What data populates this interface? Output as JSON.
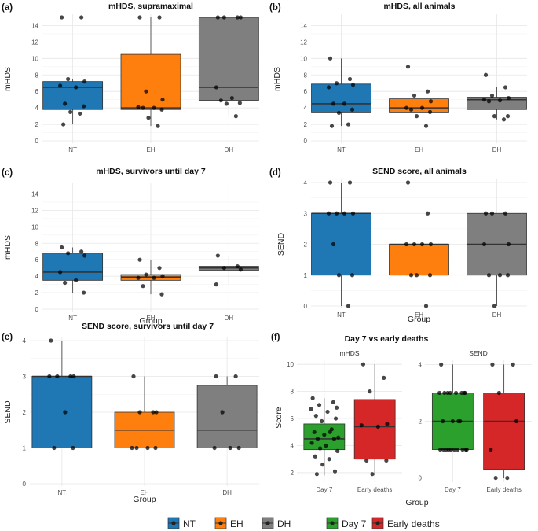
{
  "colors": {
    "NT": "#1f77b4",
    "EH": "#ff7f0e",
    "DH": "#7f7f7f",
    "Day 7": "#2ca02c",
    "Early deaths": "#d62728"
  },
  "chart_data": [
    {
      "type": "box",
      "panel": "(a)",
      "title": "mHDS, supramaximal",
      "xlabel": "",
      "ylabel": "mHDS",
      "ylim": [
        0,
        15
      ],
      "yticks": [
        0,
        2,
        4,
        6,
        8,
        10,
        12,
        14
      ],
      "minor": true,
      "categories": [
        "NT",
        "EH",
        "DH"
      ],
      "boxes": [
        {
          "group": "NT",
          "q1": 3.8,
          "median": 6.5,
          "q3": 7.2,
          "lo": 2,
          "hi": 7.5
        },
        {
          "group": "EH",
          "q1": 3.8,
          "median": 4,
          "q3": 10.5,
          "lo": 1.8,
          "hi": 15
        },
        {
          "group": "DH",
          "q1": 4.9,
          "median": 6.5,
          "q3": 15,
          "lo": 3,
          "hi": 15
        }
      ],
      "points": [
        {
          "group": "NT",
          "values": [
            15,
            15,
            7.5,
            7.2,
            6.7,
            6.5,
            4.5,
            4.2,
            3.5,
            3.3,
            2
          ]
        },
        {
          "group": "EH",
          "values": [
            15,
            15,
            6,
            5,
            4.1,
            4,
            4,
            3.8,
            2.8,
            1.8
          ]
        },
        {
          "group": "DH",
          "values": [
            15,
            15,
            15,
            15,
            6.5,
            5.2,
            4.9,
            4.6,
            4.5,
            3
          ]
        }
      ]
    },
    {
      "type": "box",
      "panel": "(b)",
      "title": "mHDS, all animals",
      "xlabel": "",
      "ylabel": "mHDS",
      "ylim": [
        0,
        15
      ],
      "yticks": [
        0,
        2,
        4,
        6,
        8,
        10,
        12,
        14
      ],
      "minor": true,
      "categories": [
        "NT",
        "EH",
        "DH"
      ],
      "boxes": [
        {
          "group": "NT",
          "q1": 3.4,
          "median": 4.5,
          "q3": 6.9,
          "lo": 1.8,
          "hi": 10
        },
        {
          "group": "EH",
          "q1": 3.4,
          "median": 4,
          "q3": 5.1,
          "lo": 1.8,
          "hi": 5.8
        },
        {
          "group": "DH",
          "q1": 3.8,
          "median": 5,
          "q3": 5.3,
          "lo": 2.6,
          "hi": 6.5
        }
      ],
      "points": [
        {
          "group": "NT",
          "values": [
            10,
            7.5,
            7,
            6.8,
            6.5,
            4.5,
            4.5,
            3.8,
            3.4,
            2,
            1.8
          ]
        },
        {
          "group": "EH",
          "values": [
            9,
            6,
            5.5,
            4.8,
            4,
            4,
            3.8,
            3.5,
            3,
            1.8
          ]
        },
        {
          "group": "DH",
          "values": [
            8,
            6.5,
            5.5,
            5.2,
            5,
            4.9,
            4.8,
            3,
            3,
            2.6
          ]
        }
      ]
    },
    {
      "type": "box",
      "panel": "(c)",
      "title": "mHDS, survivors until day 7",
      "xlabel": "Group",
      "ylabel": "mHDS",
      "ylim": [
        0,
        15
      ],
      "yticks": [
        0,
        2,
        4,
        6,
        8,
        10,
        12,
        14
      ],
      "minor": true,
      "categories": [
        "NT",
        "EH",
        "DH"
      ],
      "boxes": [
        {
          "group": "NT",
          "q1": 3.5,
          "median": 4.5,
          "q3": 6.8,
          "lo": 2,
          "hi": 7.5
        },
        {
          "group": "EH",
          "q1": 3.5,
          "median": 3.9,
          "q3": 4.2,
          "lo": 1.8,
          "hi": 6
        },
        {
          "group": "DH",
          "q1": 4.7,
          "median": 5,
          "q3": 5.2,
          "lo": 3,
          "hi": 6.5
        }
      ],
      "points": [
        {
          "group": "NT",
          "values": [
            7.5,
            7,
            6.8,
            6.5,
            4.5,
            3.5,
            3.2,
            2
          ]
        },
        {
          "group": "EH",
          "values": [
            6,
            5,
            4.2,
            4,
            3.8,
            3.8,
            2.8,
            1.8
          ]
        },
        {
          "group": "DH",
          "values": [
            6.5,
            5.2,
            5,
            4.8,
            3
          ]
        }
      ]
    },
    {
      "type": "box",
      "panel": "(d)",
      "title": "SEND score, all animals",
      "xlabel": "Group",
      "ylabel": "SEND",
      "ylim": [
        0,
        4
      ],
      "yticks": [
        0,
        1,
        2,
        3,
        4
      ],
      "minor": false,
      "categories": [
        "NT",
        "EH",
        "DH"
      ],
      "boxes": [
        {
          "group": "NT",
          "q1": 1,
          "median": 3,
          "q3": 3,
          "lo": 0,
          "hi": 4
        },
        {
          "group": "EH",
          "q1": 1,
          "median": 2,
          "q3": 2,
          "lo": 0,
          "hi": 3
        },
        {
          "group": "DH",
          "q1": 1,
          "median": 2,
          "q3": 3,
          "lo": 0,
          "hi": 3
        }
      ],
      "points": [
        {
          "group": "NT",
          "values": [
            4,
            4,
            3,
            3,
            3,
            3,
            2,
            1,
            1,
            0
          ]
        },
        {
          "group": "EH",
          "values": [
            4,
            3,
            2,
            2,
            2,
            2,
            1,
            1,
            1,
            0
          ]
        },
        {
          "group": "DH",
          "values": [
            3,
            3,
            3,
            2,
            2,
            1,
            1,
            1,
            0
          ]
        }
      ]
    },
    {
      "type": "box",
      "panel": "(e)",
      "title": "SEND score, survivors until day 7",
      "xlabel": "Group",
      "ylabel": "SEND",
      "ylim": [
        0,
        4
      ],
      "yticks": [
        0,
        1,
        2,
        3,
        4
      ],
      "minor": false,
      "categories": [
        "NT",
        "EH",
        "DH"
      ],
      "boxes": [
        {
          "group": "NT",
          "q1": 1,
          "median": 3,
          "q3": 3,
          "lo": 1,
          "hi": 4
        },
        {
          "group": "EH",
          "q1": 1,
          "median": 1.5,
          "q3": 2,
          "lo": 1,
          "hi": 3
        },
        {
          "group": "DH",
          "q1": 1,
          "median": 1.5,
          "q3": 2.75,
          "lo": 1,
          "hi": 3
        }
      ],
      "points": [
        {
          "group": "NT",
          "values": [
            4,
            3,
            3,
            3,
            3,
            2,
            1,
            1
          ]
        },
        {
          "group": "EH",
          "values": [
            3,
            2,
            2,
            2,
            1,
            1,
            1,
            1
          ]
        },
        {
          "group": "DH",
          "values": [
            3,
            3,
            2,
            1,
            1,
            1
          ]
        }
      ]
    },
    {
      "type": "box",
      "panel": "(f)",
      "title": "Day 7 vs early deaths",
      "xlabel": "Group",
      "ylabel": "Score",
      "facets": [
        {
          "strip": "mHDS",
          "ylim": [
            1.3,
            10.3
          ],
          "yticks": [
            2,
            4,
            6,
            8,
            10
          ],
          "categories": [
            "Day 7",
            "Early deaths"
          ],
          "boxes": [
            {
              "group": "Day 7",
              "q1": 3.7,
              "median": 4.5,
              "q3": 5.6,
              "lo": 1.8,
              "hi": 7.5
            },
            {
              "group": "Early deaths",
              "q1": 3,
              "median": 5.4,
              "q3": 7.4,
              "lo": 1.8,
              "hi": 10
            }
          ],
          "points": [
            {
              "group": "Day 7",
              "values": [
                7.5,
                7.2,
                7,
                6.8,
                6.7,
                6.5,
                6.2,
                6,
                5.8,
                5.2,
                5,
                5,
                4.8,
                4.6,
                4.5,
                4.5,
                4.2,
                4,
                3.8,
                3.6,
                3.2,
                3,
                2.6,
                2.1,
                1.9
              ]
            },
            {
              "group": "Early deaths",
              "values": [
                10,
                9,
                8,
                5.6,
                5.5,
                5.4,
                2.9,
                2.9,
                1.9
              ]
            }
          ]
        },
        {
          "strip": "SEND",
          "ylim": [
            -0.15,
            4.15
          ],
          "yticks": [
            0,
            2,
            4
          ],
          "categories": [
            "Day 7",
            "Early deaths"
          ],
          "boxes": [
            {
              "group": "Day 7",
              "q1": 1,
              "median": 2,
              "q3": 3,
              "lo": 1,
              "hi": 4
            },
            {
              "group": "Early deaths",
              "q1": 0.3,
              "median": 2,
              "q3": 3,
              "lo": 0,
              "hi": 4
            }
          ],
          "points": [
            {
              "group": "Day 7",
              "values": [
                4,
                3,
                3,
                3,
                3,
                3,
                3,
                3,
                3,
                2,
                2,
                2,
                2,
                1,
                1,
                1,
                1,
                1,
                1,
                1,
                1,
                1,
                1
              ]
            },
            {
              "group": "Early deaths",
              "values": [
                4,
                4,
                3,
                2,
                1,
                0,
                0
              ]
            }
          ]
        }
      ]
    }
  ],
  "legend": [
    "NT",
    "EH",
    "DH",
    "Day 7",
    "Early deaths"
  ]
}
